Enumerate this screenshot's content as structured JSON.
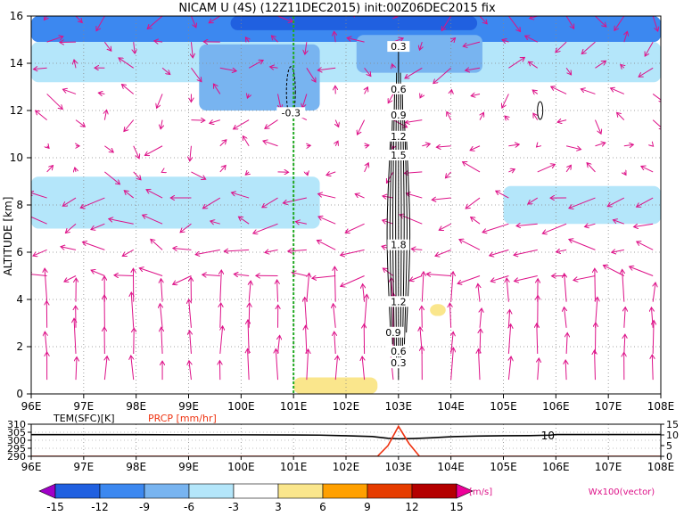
{
  "title": "NICAM U (4S) (12Z11DEC2015) init:00Z06DEC2015 fix",
  "chart_data": [
    {
      "type": "heatmap",
      "title": "NICAM U (4S) (12Z11DEC2015) init:00Z06DEC2015 fix",
      "ylabel": "ALTITUDE [km]",
      "x_ticks": [
        "96E",
        "97E",
        "98E",
        "99E",
        "100E",
        "101E",
        "102E",
        "103E",
        "104E",
        "105E",
        "106E",
        "107E",
        "108E"
      ],
      "y_ticks": [
        "0",
        "2",
        "4",
        "6",
        "8",
        "10",
        "12",
        "14",
        "16"
      ],
      "xlim": [
        96,
        108
      ],
      "ylim": [
        0,
        16
      ],
      "grid": true,
      "vertical_marker_lon": 101,
      "vertical_marker_color": "#22aa22",
      "contour_labels": [
        {
          "text": "0.3",
          "lon": 103.0,
          "alt": 14.6
        },
        {
          "text": "0.6",
          "lon": 103.0,
          "alt": 12.8
        },
        {
          "text": "0.9",
          "lon": 103.0,
          "alt": 11.7
        },
        {
          "text": "1.2",
          "lon": 103.0,
          "alt": 10.8
        },
        {
          "text": "1.5",
          "lon": 103.0,
          "alt": 10.0
        },
        {
          "text": "1.8",
          "lon": 103.0,
          "alt": 6.2
        },
        {
          "text": "1.2",
          "lon": 103.0,
          "alt": 3.8
        },
        {
          "text": "0.9",
          "lon": 102.9,
          "alt": 2.5
        },
        {
          "text": "0.6",
          "lon": 103.0,
          "alt": 1.7
        },
        {
          "text": "0.3",
          "lon": 103.0,
          "alt": 1.2
        },
        {
          "text": "-0.3",
          "lon": 100.95,
          "alt": 11.8
        }
      ],
      "colorbar": {
        "levels": [
          "-15",
          "-12",
          "-9",
          "-6",
          "-3",
          "3",
          "6",
          "9",
          "12",
          "15"
        ],
        "colors": [
          "#a000c8",
          "#2060e0",
          "#3c88f0",
          "#78b4f0",
          "#b4e6fa",
          "#ffffff",
          "#fae68c",
          "#ffa000",
          "#e63c00",
          "#b40000",
          "#ee0099"
        ],
        "unit": "[m/s]"
      },
      "vector_label": "Wx100(vector)",
      "vector_color": "#dd1188",
      "color_regions": [
        {
          "lon": [
            96,
            108
          ],
          "alt": [
            14.9,
            16
          ],
          "u": -12
        },
        {
          "lon": [
            99.8,
            104.5
          ],
          "alt": [
            15.4,
            16
          ],
          "u": -15
        },
        {
          "lon": [
            96,
            108
          ],
          "alt": [
            13.2,
            14.9
          ],
          "u": -6
        },
        {
          "lon": [
            99.2,
            101.5
          ],
          "alt": [
            12.0,
            14.8
          ],
          "u": -9
        },
        {
          "lon": [
            102.2,
            104.6
          ],
          "alt": [
            13.6,
            15.2
          ],
          "u": -9
        },
        {
          "lon": [
            96,
            108
          ],
          "alt": [
            10.5,
            13.2
          ],
          "u": -3
        },
        {
          "lon": [
            96,
            101.5
          ],
          "alt": [
            7.0,
            9.2
          ],
          "u": -6
        },
        {
          "lon": [
            105,
            108
          ],
          "alt": [
            7.2,
            8.8
          ],
          "u": -6
        },
        {
          "lon": [
            101.5,
            105
          ],
          "alt": [
            7.5,
            9.0
          ],
          "u": -3
        },
        {
          "lon": [
            96,
            108
          ],
          "alt": [
            4.8,
            7.2
          ],
          "u": -3
        },
        {
          "lon": [
            96,
            97.5
          ],
          "alt": [
            3.0,
            4.8
          ],
          "u": -3
        },
        {
          "lon": [
            101.0,
            102.6
          ],
          "alt": [
            0,
            0.7
          ],
          "u": 3
        },
        {
          "lon": [
            103.6,
            103.9
          ],
          "alt": [
            3.3,
            3.8
          ],
          "u": 3
        }
      ]
    },
    {
      "type": "line",
      "series": [
        {
          "name": "TEM(SFC)[K]",
          "color": "#000000",
          "axis": "left",
          "x": [
            96,
            97,
            98,
            99,
            100,
            101,
            101.5,
            102,
            102.5,
            102.8,
            103,
            103.3,
            103.6,
            104,
            104.5,
            105,
            105.5,
            105.9,
            106,
            106.5,
            107,
            108
          ],
          "y": [
            303.5,
            303.5,
            303.5,
            303.4,
            303.4,
            303.3,
            303.2,
            302.8,
            302.3,
            301.2,
            300.9,
            301.1,
            301.5,
            302.2,
            302.6,
            302.8,
            302.9,
            303.2,
            303.6,
            303.6,
            303.6,
            303.6
          ]
        },
        {
          "name": "PRCP [mm/hr]",
          "color": "#ee3311",
          "axis": "right",
          "x": [
            96,
            102.6,
            102.8,
            103.0,
            103.2,
            103.4,
            108
          ],
          "y": [
            0,
            0,
            5,
            14,
            6,
            0,
            0
          ]
        }
      ],
      "x_ticks": [
        "96E",
        "97E",
        "98E",
        "99E",
        "100E",
        "101E",
        "102E",
        "103E",
        "104E",
        "105E",
        "106E",
        "107E",
        "108E"
      ],
      "y_ticks_left": [
        "290",
        "295",
        "300",
        "305",
        "310"
      ],
      "y_ticks_right": [
        "0",
        "5",
        "10",
        "15"
      ],
      "ylim_left": [
        290,
        310
      ],
      "ylim_right": [
        0,
        15
      ],
      "xlim": [
        96,
        108
      ],
      "annotation": "10"
    }
  ]
}
